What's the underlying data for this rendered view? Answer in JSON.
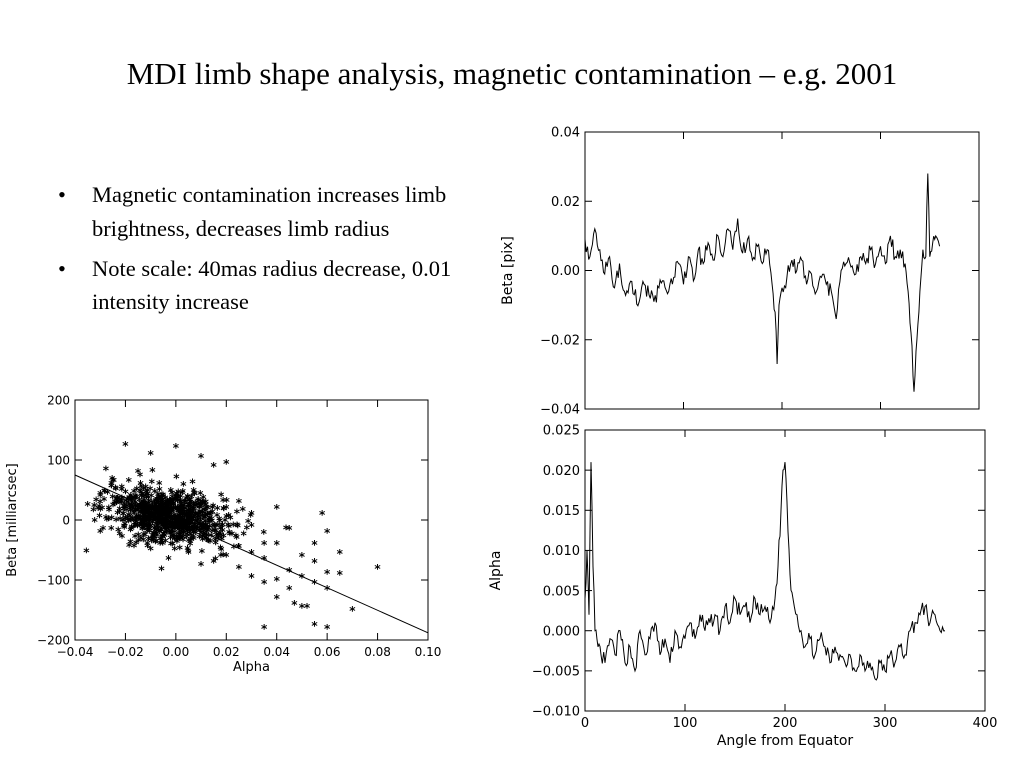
{
  "slide": {
    "title": "MDI limb shape analysis, magnetic contamination – e.g. 2001",
    "bullets": [
      "Magnetic contamination increases limb brightness, decreases limb radius",
      "Note scale: 40mas radius decrease, 0.01 intensity increase"
    ]
  },
  "chart_data": [
    {
      "id": "scatter",
      "type": "scatter",
      "xlabel": "Alpha",
      "ylabel": "Beta [milliarcsec]",
      "xlim": [
        -0.04,
        0.1
      ],
      "ylim": [
        -200,
        200
      ],
      "xticks": [
        -0.04,
        -0.02,
        0.0,
        0.02,
        0.04,
        0.06,
        0.08,
        0.1
      ],
      "xtick_labels": [
        "−0.04",
        "−0.02",
        "0.00",
        "0.02",
        "0.04",
        "0.06",
        "0.08",
        "0.10"
      ],
      "yticks": [
        -200,
        -100,
        0,
        100,
        200
      ],
      "ytick_labels": [
        "−200",
        "−100",
        "0",
        "100",
        "200"
      ],
      "marker": "*",
      "fit_line": {
        "x": [
          -0.04,
          0.1
        ],
        "y": [
          75,
          -188
        ]
      },
      "cluster": {
        "center": [
          -0.003,
          5
        ],
        "spread": [
          0.012,
          22
        ],
        "count": 900
      },
      "points": [
        [
          -0.02,
          125
        ],
        [
          -0.01,
          110
        ],
        [
          0.0,
          122
        ],
        [
          0.01,
          105
        ],
        [
          0.015,
          90
        ],
        [
          0.02,
          95
        ],
        [
          -0.035,
          25
        ],
        [
          -0.03,
          40
        ],
        [
          -0.03,
          -20
        ],
        [
          -0.025,
          65
        ],
        [
          -0.015,
          80
        ],
        [
          0.005,
          -55
        ],
        [
          0.01,
          -75
        ],
        [
          0.015,
          -70
        ],
        [
          0.02,
          -60
        ],
        [
          0.025,
          -45
        ],
        [
          0.02,
          20
        ],
        [
          0.025,
          30
        ],
        [
          0.03,
          10
        ],
        [
          0.03,
          -10
        ],
        [
          0.03,
          -55
        ],
        [
          0.035,
          -65
        ],
        [
          0.025,
          -80
        ],
        [
          0.03,
          -95
        ],
        [
          0.035,
          -105
        ],
        [
          0.04,
          -100
        ],
        [
          0.045,
          -85
        ],
        [
          0.035,
          -180
        ],
        [
          0.04,
          -130
        ],
        [
          0.045,
          -115
        ],
        [
          0.05,
          -60
        ],
        [
          0.05,
          -95
        ],
        [
          0.055,
          -105
        ],
        [
          0.055,
          -70
        ],
        [
          0.06,
          -88
        ],
        [
          0.06,
          -115
        ],
        [
          0.065,
          -90
        ],
        [
          0.065,
          -55
        ],
        [
          0.055,
          -175
        ],
        [
          0.06,
          -180
        ],
        [
          0.05,
          -145
        ],
        [
          0.047,
          -140
        ],
        [
          0.052,
          -145
        ],
        [
          0.04,
          20
        ],
        [
          0.045,
          -15
        ],
        [
          0.055,
          -40
        ],
        [
          0.058,
          10
        ],
        [
          0.06,
          -20
        ],
        [
          0.07,
          -150
        ],
        [
          0.08,
          -80
        ],
        [
          0.035,
          -40
        ],
        [
          0.04,
          -40
        ]
      ]
    },
    {
      "id": "beta",
      "type": "line",
      "xlabel": "",
      "ylabel": "Beta [pix]",
      "xlim": [
        0,
        400
      ],
      "ylim": [
        -0.04,
        0.04
      ],
      "xticks": [
        0,
        100,
        200,
        300,
        400
      ],
      "xtick_labels": [],
      "yticks": [
        -0.04,
        -0.02,
        0.0,
        0.02,
        0.04
      ],
      "ytick_labels": [
        "−0.04",
        "−0.02",
        "0.00",
        "0.02",
        "0.04"
      ],
      "x": [
        0,
        5,
        10,
        15,
        20,
        25,
        30,
        35,
        40,
        45,
        50,
        55,
        60,
        65,
        70,
        75,
        80,
        85,
        90,
        95,
        100,
        105,
        110,
        115,
        120,
        125,
        130,
        135,
        140,
        145,
        150,
        155,
        160,
        165,
        170,
        175,
        180,
        185,
        190,
        193,
        195,
        197,
        200,
        205,
        210,
        215,
        220,
        225,
        230,
        235,
        240,
        245,
        250,
        255,
        260,
        265,
        270,
        275,
        280,
        285,
        290,
        295,
        300,
        305,
        310,
        315,
        320,
        325,
        328,
        331,
        334,
        337,
        340,
        343,
        346,
        348,
        350,
        353,
        356,
        360
      ],
      "y": [
        0.009,
        0.004,
        0.012,
        0.006,
        -0.001,
        0.004,
        -0.005,
        0.002,
        -0.006,
        -0.004,
        -0.007,
        -0.009,
        -0.004,
        -0.007,
        -0.009,
        -0.005,
        -0.003,
        -0.006,
        -0.002,
        0.002,
        -0.004,
        0.004,
        -0.003,
        0.006,
        0.002,
        0.008,
        0.003,
        0.01,
        0.004,
        0.012,
        0.006,
        0.015,
        0.005,
        0.009,
        0.003,
        0.007,
        0.002,
        0.006,
        -0.004,
        -0.012,
        -0.027,
        -0.01,
        -0.005,
        -0.002,
        0.003,
        0.0,
        0.003,
        -0.004,
        -0.001,
        -0.006,
        -0.002,
        -0.004,
        -0.006,
        -0.014,
        0.0,
        0.002,
        0.001,
        -0.001,
        0.004,
        0.002,
        0.006,
        0.002,
        0.007,
        0.002,
        0.01,
        0.004,
        0.006,
        0.002,
        -0.006,
        -0.018,
        -0.035,
        -0.02,
        -0.006,
        0.006,
        0.004,
        0.028,
        0.004,
        0.008,
        0.01,
        0.007
      ]
    },
    {
      "id": "alpha",
      "type": "line",
      "xlabel": "Angle from Equator",
      "ylabel": "Alpha",
      "xlim": [
        0,
        400
      ],
      "ylim": [
        -0.01,
        0.025
      ],
      "xticks": [
        0,
        100,
        200,
        300,
        400
      ],
      "xtick_labels": [
        "0",
        "100",
        "200",
        "300",
        "400"
      ],
      "yticks": [
        -0.01,
        -0.005,
        0.0,
        0.005,
        0.01,
        0.015,
        0.02,
        0.025
      ],
      "ytick_labels": [
        "−0.010",
        "−0.005",
        "0.000",
        "0.005",
        "0.010",
        "0.015",
        "0.020",
        "0.025"
      ],
      "x": [
        0,
        2,
        4,
        6,
        8,
        10,
        13,
        16,
        20,
        25,
        30,
        35,
        40,
        45,
        50,
        55,
        60,
        65,
        70,
        75,
        80,
        85,
        90,
        95,
        100,
        105,
        110,
        115,
        120,
        125,
        130,
        135,
        140,
        145,
        150,
        155,
        160,
        165,
        170,
        175,
        180,
        185,
        190,
        193,
        196,
        198,
        200,
        202,
        205,
        208,
        212,
        216,
        220,
        225,
        230,
        235,
        240,
        245,
        250,
        255,
        260,
        265,
        270,
        275,
        280,
        285,
        290,
        295,
        300,
        305,
        310,
        315,
        320,
        325,
        330,
        335,
        340,
        345,
        350,
        355,
        360
      ],
      "y": [
        0.004,
        0.01,
        0.002,
        0.021,
        0.008,
        0.0,
        -0.002,
        -0.003,
        -0.004,
        -0.001,
        -0.003,
        0.0,
        -0.004,
        -0.002,
        -0.005,
        0.0,
        -0.003,
        -0.001,
        0.001,
        -0.003,
        -0.001,
        -0.004,
        0.0,
        -0.002,
        -0.001,
        0.001,
        -0.001,
        0.002,
        0.0,
        0.001,
        0.002,
        0.0,
        0.003,
        0.001,
        0.004,
        0.002,
        0.003,
        0.001,
        0.004,
        0.002,
        0.003,
        0.001,
        0.004,
        0.008,
        0.015,
        0.02,
        0.021,
        0.016,
        0.007,
        0.004,
        0.002,
        0.0,
        -0.002,
        -0.001,
        -0.003,
        -0.001,
        -0.002,
        -0.004,
        -0.002,
        -0.003,
        -0.004,
        -0.003,
        -0.005,
        -0.003,
        -0.005,
        -0.004,
        -0.006,
        -0.004,
        -0.005,
        -0.003,
        -0.004,
        -0.002,
        -0.003,
        0.0,
        0.001,
        0.002,
        0.003,
        0.001,
        0.002,
        0.0,
        0.0
      ]
    }
  ]
}
